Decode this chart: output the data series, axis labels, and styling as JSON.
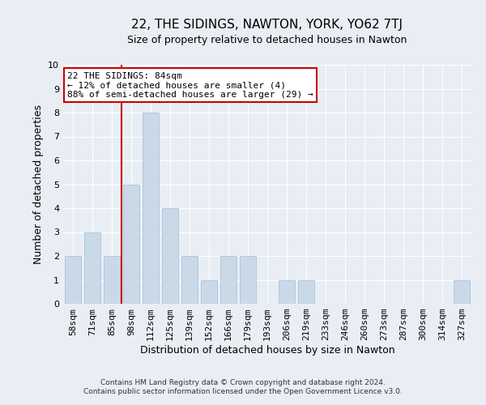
{
  "title": "22, THE SIDINGS, NAWTON, YORK, YO62 7TJ",
  "subtitle": "Size of property relative to detached houses in Nawton",
  "xlabel": "Distribution of detached houses by size in Nawton",
  "ylabel": "Number of detached properties",
  "categories": [
    "58sqm",
    "71sqm",
    "85sqm",
    "98sqm",
    "112sqm",
    "125sqm",
    "139sqm",
    "152sqm",
    "166sqm",
    "179sqm",
    "193sqm",
    "206sqm",
    "219sqm",
    "233sqm",
    "246sqm",
    "260sqm",
    "273sqm",
    "287sqm",
    "300sqm",
    "314sqm",
    "327sqm"
  ],
  "values": [
    2,
    3,
    2,
    5,
    8,
    4,
    2,
    1,
    2,
    2,
    0,
    1,
    1,
    0,
    0,
    0,
    0,
    0,
    0,
    0,
    1
  ],
  "bar_color": "#c9d9e8",
  "bar_edge_color": "#b0c8dc",
  "red_line_index": 2,
  "ylim": [
    0,
    10
  ],
  "yticks": [
    0,
    1,
    2,
    3,
    4,
    5,
    6,
    7,
    8,
    9,
    10
  ],
  "annotation_title": "22 THE SIDINGS: 84sqm",
  "annotation_line1": "← 12% of detached houses are smaller (4)",
  "annotation_line2": "88% of semi-detached houses are larger (29) →",
  "annotation_box_color": "#ffffff",
  "annotation_box_edge_color": "#cc0000",
  "footer_line1": "Contains HM Land Registry data © Crown copyright and database right 2024.",
  "footer_line2": "Contains public sector information licensed under the Open Government Licence v3.0.",
  "background_color": "#e8eef4",
  "grid_color": "#ffffff",
  "title_fontsize": 11,
  "subtitle_fontsize": 9,
  "ylabel_fontsize": 9,
  "xlabel_fontsize": 9,
  "tick_fontsize": 8,
  "annotation_fontsize": 8,
  "footer_fontsize": 6.5
}
